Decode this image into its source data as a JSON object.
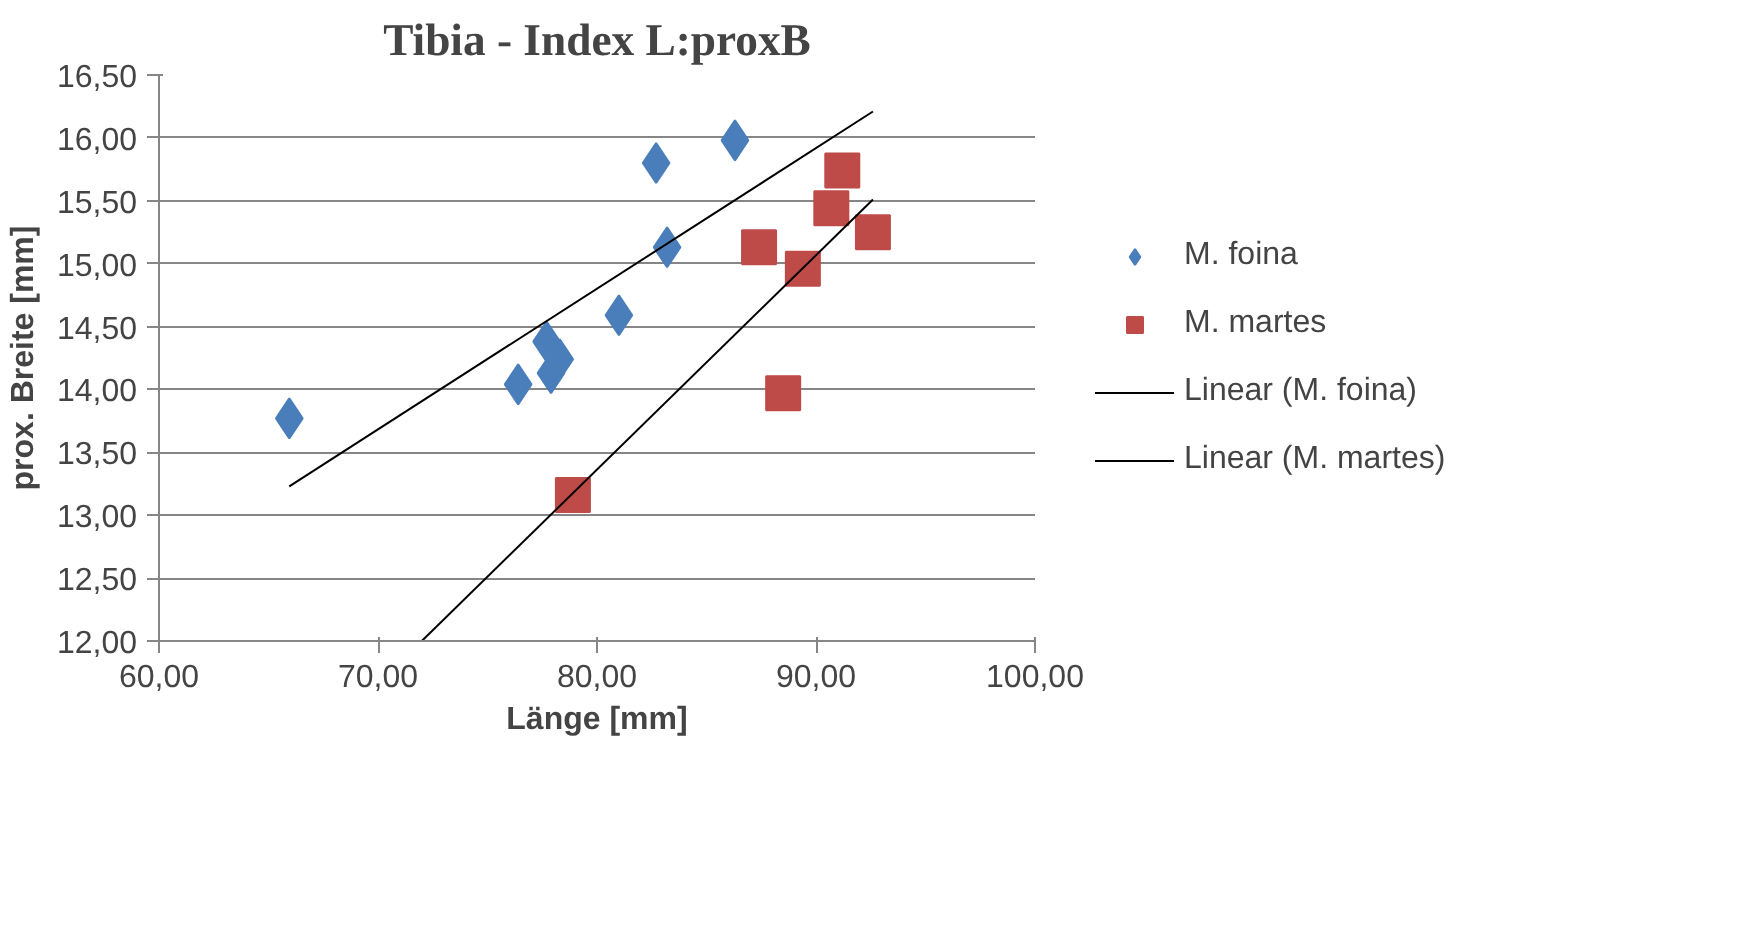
{
  "chart_data": {
    "type": "scatter",
    "title": "Tibia - Index L:proxB",
    "xlabel": "Länge [mm]",
    "ylabel": "prox. Breite [mm]",
    "xlim": [
      60,
      100
    ],
    "ylim": [
      12,
      16.5
    ],
    "xticks": [
      {
        "value": 60,
        "label": "60,00"
      },
      {
        "value": 70,
        "label": "70,00"
      },
      {
        "value": 80,
        "label": "80,00"
      },
      {
        "value": 90,
        "label": "90,00"
      },
      {
        "value": 100,
        "label": "100,00"
      }
    ],
    "yticks": [
      {
        "value": 12,
        "label": "12,00"
      },
      {
        "value": 12.5,
        "label": "12,50"
      },
      {
        "value": 13,
        "label": "13,00"
      },
      {
        "value": 13.5,
        "label": "13,50"
      },
      {
        "value": 14,
        "label": "14,00"
      },
      {
        "value": 14.5,
        "label": "14,50"
      },
      {
        "value": 15,
        "label": "15,00"
      },
      {
        "value": 15.5,
        "label": "15,50"
      },
      {
        "value": 16,
        "label": "16,00"
      },
      {
        "value": 16.5,
        "label": "16,50"
      }
    ],
    "grid": "y",
    "legend": "right",
    "series": [
      {
        "name": "M. foina",
        "type": "scatter",
        "marker": "diamond",
        "color": "#4a7ebb",
        "x": [
          65.95,
          82.7,
          86.3,
          83.2,
          81.0,
          77.7,
          78.3,
          77.9,
          76.4
        ],
        "values": [
          13.77,
          15.8,
          15.98,
          15.13,
          14.59,
          14.38,
          14.24,
          14.13,
          14.04
        ]
      },
      {
        "name": "M. martes",
        "type": "scatter",
        "marker": "square",
        "color": "#be4b48",
        "x": [
          91.2,
          90.7,
          92.6,
          87.4,
          89.4,
          88.5,
          78.9
        ],
        "values": [
          15.74,
          15.44,
          15.25,
          15.13,
          14.96,
          13.97,
          13.16
        ]
      },
      {
        "name": "Linear (M. foina)",
        "type": "line",
        "line_style": "solid",
        "color": "#000000",
        "x": [
          65.95,
          92.6
        ],
        "values": [
          13.23,
          16.21
        ]
      },
      {
        "name": "Linear (M. martes)",
        "type": "line",
        "line_style": "solid",
        "color": "#000000",
        "x": [
          72.0,
          92.6
        ],
        "values": [
          12.0,
          15.51
        ]
      }
    ]
  }
}
